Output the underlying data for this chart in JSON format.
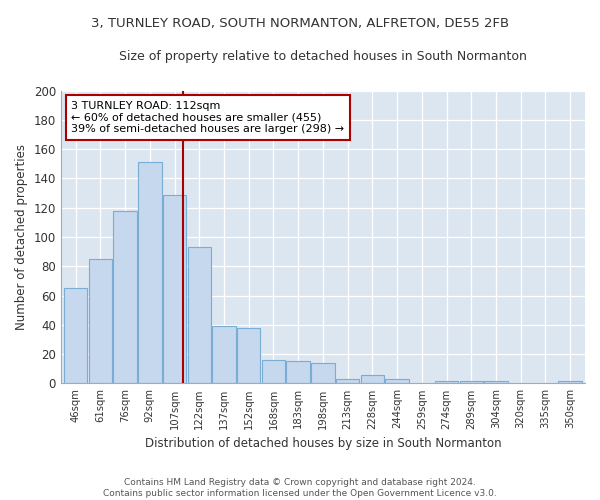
{
  "title1": "3, TURNLEY ROAD, SOUTH NORMANTON, ALFRETON, DE55 2FB",
  "title2": "Size of property relative to detached houses in South Normanton",
  "xlabel": "Distribution of detached houses by size in South Normanton",
  "ylabel": "Number of detached properties",
  "categories": [
    "46sqm",
    "61sqm",
    "76sqm",
    "92sqm",
    "107sqm",
    "122sqm",
    "137sqm",
    "152sqm",
    "168sqm",
    "183sqm",
    "198sqm",
    "213sqm",
    "228sqm",
    "244sqm",
    "259sqm",
    "274sqm",
    "289sqm",
    "304sqm",
    "320sqm",
    "335sqm",
    "350sqm"
  ],
  "values": [
    65,
    85,
    118,
    151,
    129,
    93,
    39,
    38,
    16,
    15,
    14,
    3,
    6,
    3,
    0,
    2,
    2,
    2,
    0,
    0,
    2
  ],
  "bar_color": "#c5d8ed",
  "bar_edge_color": "#7aadd4",
  "bg_color": "#dce6f1",
  "annotation_text": "3 TURNLEY ROAD: 112sqm\n← 60% of detached houses are smaller (455)\n39% of semi-detached houses are larger (298) →",
  "annotation_box_color": "#ffffff",
  "annotation_box_edge_color": "#aa0000",
  "vline_color": "#aa0000",
  "footer": "Contains HM Land Registry data © Crown copyright and database right 2024.\nContains public sector information licensed under the Open Government Licence v3.0.",
  "ylim": [
    0,
    200
  ],
  "fig_bg": "#ffffff"
}
